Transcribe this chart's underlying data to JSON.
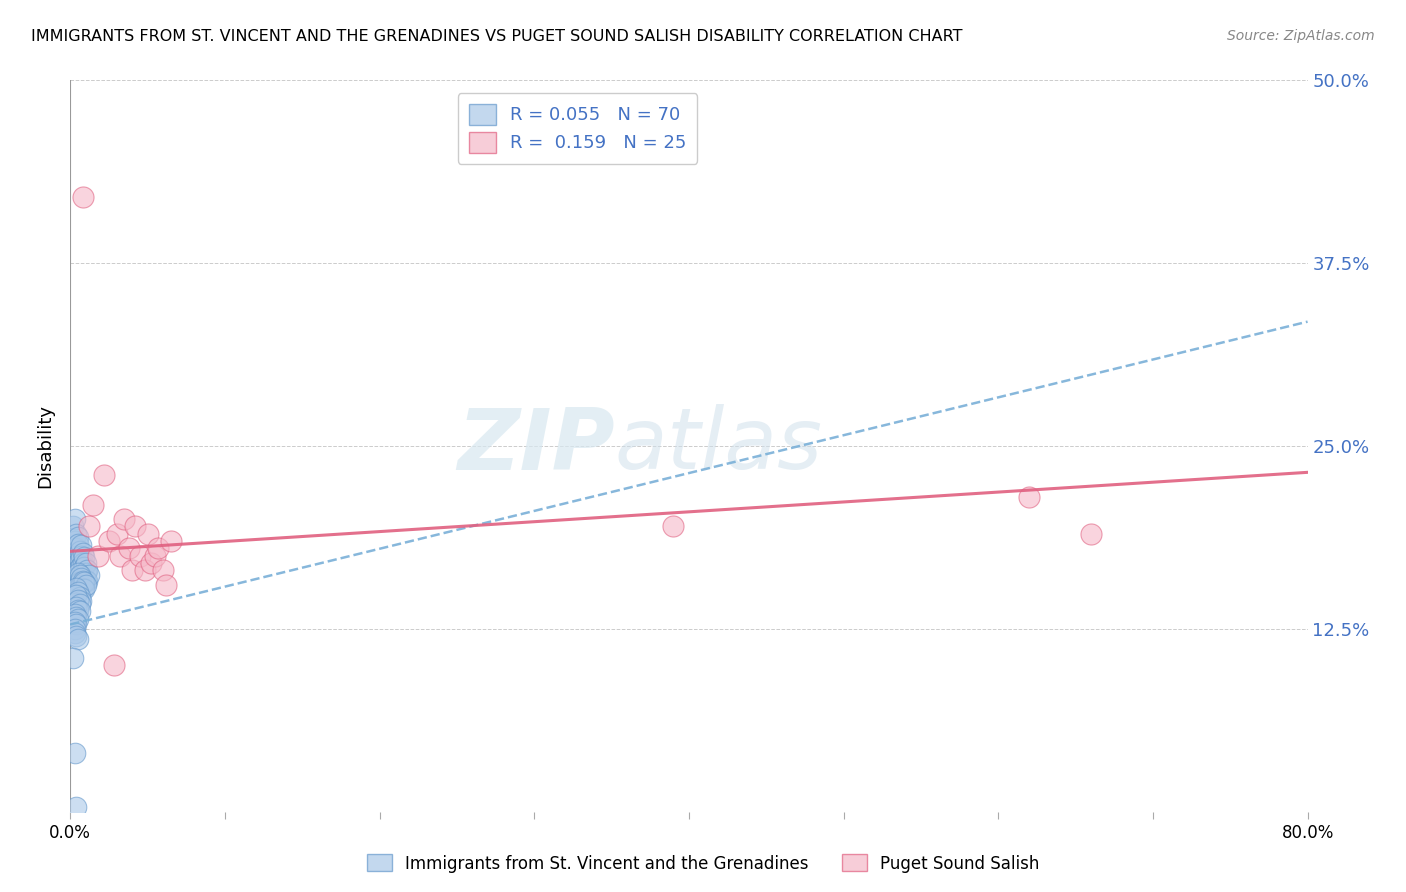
{
  "title": "IMMIGRANTS FROM ST. VINCENT AND THE GRENADINES VS PUGET SOUND SALISH DISABILITY CORRELATION CHART",
  "source": "Source: ZipAtlas.com",
  "ylabel": "Disability",
  "xlim": [
    0.0,
    0.8
  ],
  "ylim": [
    0.0,
    0.5
  ],
  "yticks": [
    0.0,
    0.125,
    0.25,
    0.375,
    0.5
  ],
  "ytick_labels": [
    "",
    "12.5%",
    "25.0%",
    "37.5%",
    "50.0%"
  ],
  "xticks": [
    0.0,
    0.1,
    0.2,
    0.3,
    0.4,
    0.5,
    0.6,
    0.7,
    0.8
  ],
  "xtick_labels": [
    "0.0%",
    "",
    "",
    "",
    "",
    "",
    "",
    "",
    "80.0%"
  ],
  "blue_R": 0.055,
  "blue_N": 70,
  "pink_R": 0.159,
  "pink_N": 25,
  "blue_color": "#aac8e8",
  "pink_color": "#f5b8c8",
  "blue_edge_color": "#6699cc",
  "pink_edge_color": "#e06080",
  "blue_line_color": "#7ab0d8",
  "pink_line_color": "#e06080",
  "watermark": "ZIPatlas",
  "blue_line_x0": 0.0,
  "blue_line_y0": 0.128,
  "blue_line_x1": 0.8,
  "blue_line_y1": 0.335,
  "pink_line_x0": 0.0,
  "pink_line_y0": 0.178,
  "pink_line_x1": 0.8,
  "pink_line_y1": 0.232,
  "blue_scatter_x": [
    0.002,
    0.003,
    0.003,
    0.004,
    0.004,
    0.004,
    0.005,
    0.005,
    0.005,
    0.005,
    0.006,
    0.006,
    0.006,
    0.006,
    0.007,
    0.007,
    0.007,
    0.007,
    0.008,
    0.008,
    0.008,
    0.009,
    0.009,
    0.009,
    0.01,
    0.01,
    0.01,
    0.011,
    0.011,
    0.012,
    0.002,
    0.003,
    0.003,
    0.004,
    0.004,
    0.005,
    0.005,
    0.006,
    0.006,
    0.007,
    0.007,
    0.008,
    0.008,
    0.009,
    0.009,
    0.01,
    0.003,
    0.004,
    0.005,
    0.006,
    0.007,
    0.003,
    0.004,
    0.005,
    0.006,
    0.004,
    0.005,
    0.006,
    0.003,
    0.004,
    0.005,
    0.003,
    0.004,
    0.003,
    0.003,
    0.004,
    0.005,
    0.002,
    0.003,
    0.004
  ],
  "blue_scatter_y": [
    0.195,
    0.2,
    0.185,
    0.19,
    0.18,
    0.175,
    0.188,
    0.183,
    0.17,
    0.165,
    0.178,
    0.172,
    0.167,
    0.162,
    0.182,
    0.175,
    0.168,
    0.16,
    0.177,
    0.17,
    0.163,
    0.174,
    0.167,
    0.16,
    0.17,
    0.163,
    0.158,
    0.165,
    0.158,
    0.162,
    0.155,
    0.158,
    0.152,
    0.16,
    0.155,
    0.163,
    0.157,
    0.162,
    0.157,
    0.16,
    0.155,
    0.158,
    0.153,
    0.157,
    0.152,
    0.155,
    0.148,
    0.153,
    0.15,
    0.147,
    0.144,
    0.143,
    0.148,
    0.145,
    0.142,
    0.14,
    0.138,
    0.137,
    0.135,
    0.133,
    0.132,
    0.13,
    0.128,
    0.125,
    0.122,
    0.12,
    0.118,
    0.105,
    0.04,
    0.003
  ],
  "pink_scatter_x": [
    0.008,
    0.012,
    0.015,
    0.018,
    0.022,
    0.025,
    0.028,
    0.03,
    0.032,
    0.035,
    0.038,
    0.04,
    0.042,
    0.045,
    0.048,
    0.05,
    0.052,
    0.055,
    0.057,
    0.06,
    0.062,
    0.065,
    0.39,
    0.62,
    0.66
  ],
  "pink_scatter_y": [
    0.42,
    0.195,
    0.21,
    0.175,
    0.23,
    0.185,
    0.1,
    0.19,
    0.175,
    0.2,
    0.18,
    0.165,
    0.195,
    0.175,
    0.165,
    0.19,
    0.17,
    0.175,
    0.18,
    0.165,
    0.155,
    0.185,
    0.195,
    0.215,
    0.19
  ]
}
